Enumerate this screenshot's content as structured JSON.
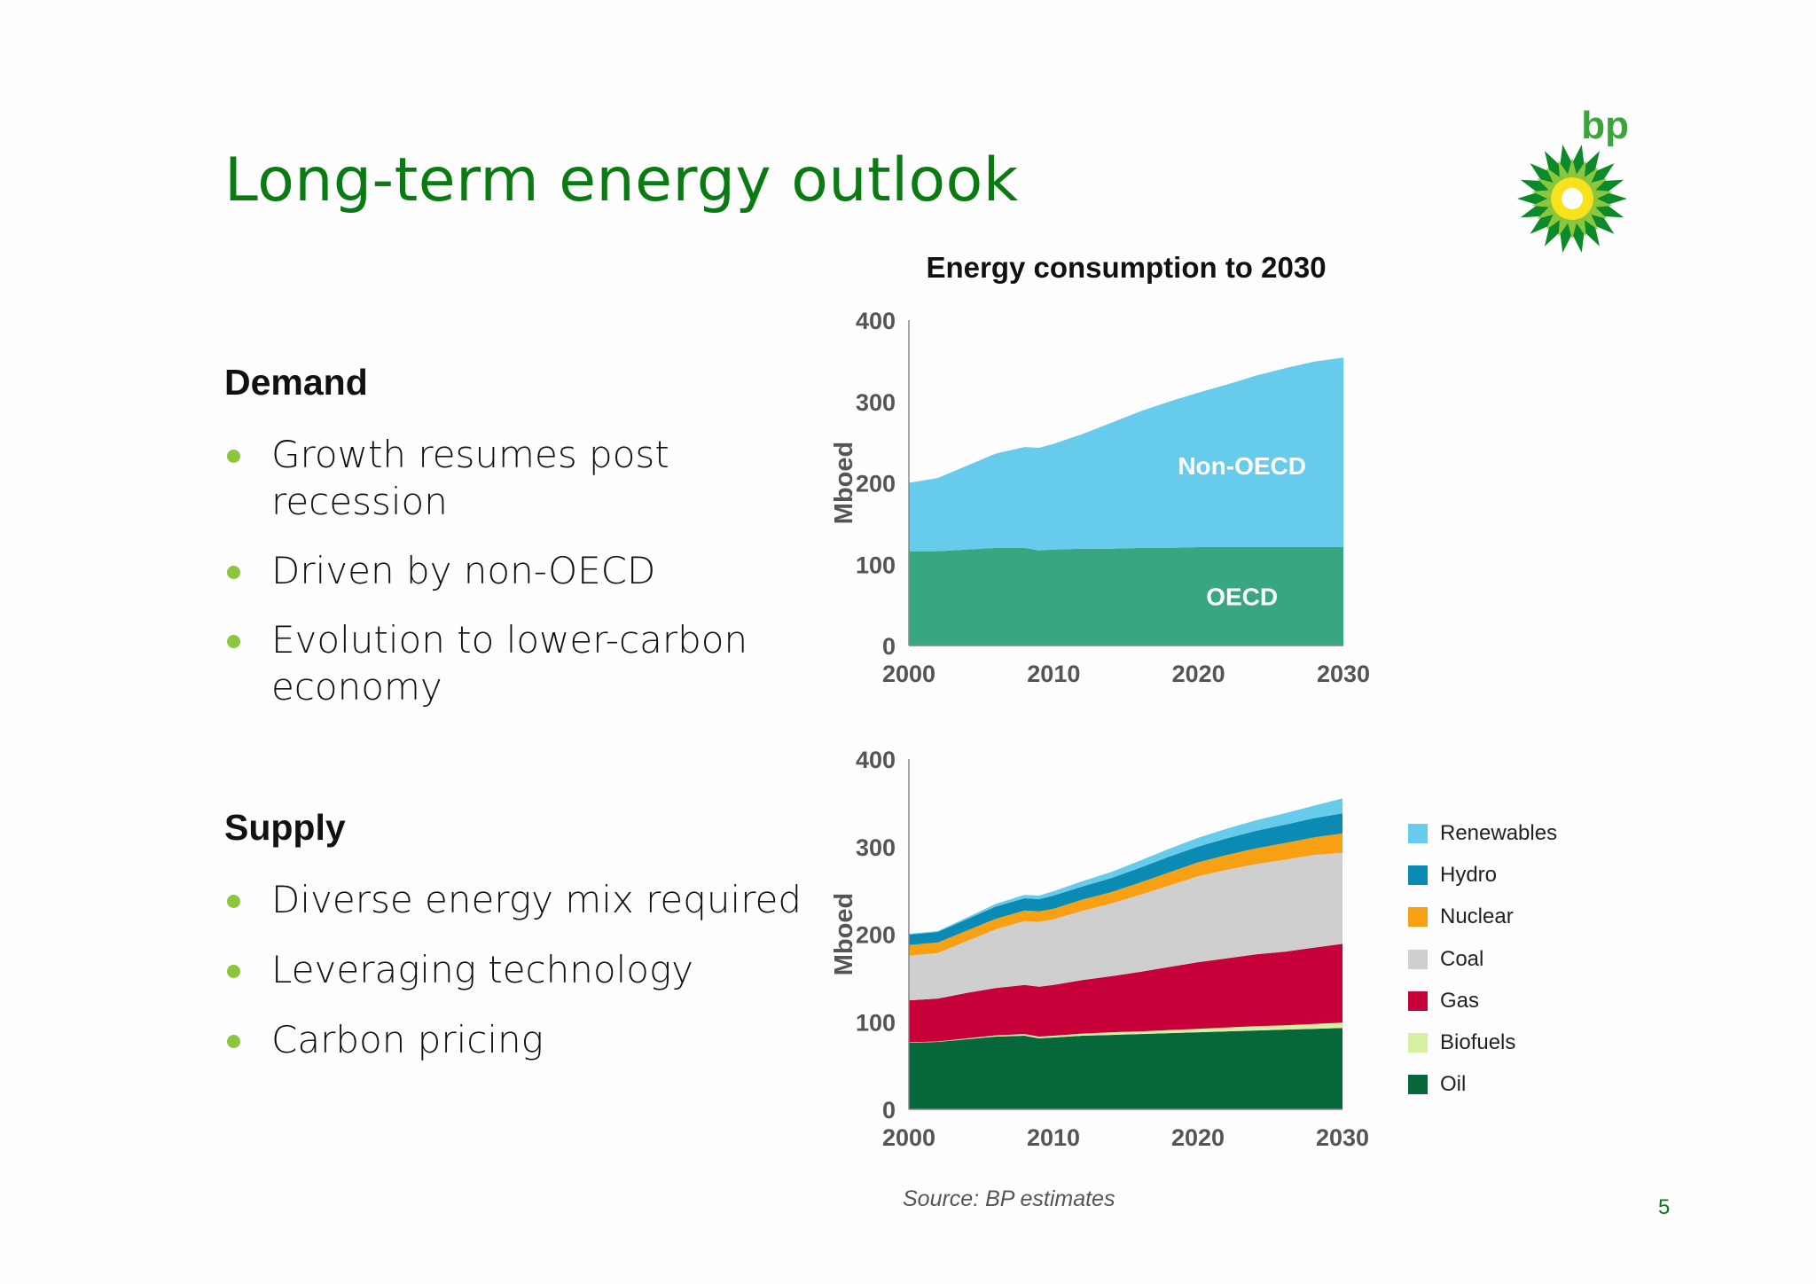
{
  "slide": {
    "title": "Long-term energy outlook",
    "page_number": "5",
    "source": "Source:  BP estimates",
    "logo_text": "bp"
  },
  "demand": {
    "heading": "Demand",
    "bullets": [
      "Growth resumes post recession",
      "Driven by non-OECD",
      "Evolution to lower-carbon economy"
    ]
  },
  "supply": {
    "heading": "Supply",
    "bullets": [
      "Diverse energy mix required",
      "Leveraging technology",
      "Carbon pricing"
    ]
  },
  "colors": {
    "title_green": "#0a7a12",
    "bullet_dot": "#8cc63f",
    "oecd": "#38a77f",
    "non_oecd": "#67cbeb",
    "oil": "#06683a",
    "biofuels": "#d8f0a4",
    "gas": "#c8003a",
    "coal": "#cfcfd0",
    "nuclear": "#f7a014",
    "hydro": "#0b8bb3",
    "renewables": "#67cbeb"
  },
  "chart_data": [
    {
      "type": "area",
      "title": "Energy consumption to 2030",
      "ylabel": "Mboed",
      "xlabel": "",
      "xlim": [
        2000,
        2030
      ],
      "ylim": [
        0,
        400
      ],
      "x_ticks": [
        2000,
        2010,
        2020,
        2030
      ],
      "y_ticks": [
        0,
        100,
        200,
        300,
        400
      ],
      "stacked": true,
      "x": [
        2000,
        2002,
        2004,
        2006,
        2008,
        2009,
        2010,
        2012,
        2014,
        2016,
        2018,
        2020,
        2022,
        2024,
        2026,
        2028,
        2030
      ],
      "series": [
        {
          "name": "OECD",
          "values": [
            116,
            116,
            118,
            120,
            120,
            117,
            118,
            119,
            119,
            120,
            120,
            121,
            121,
            121,
            121,
            121,
            121
          ]
        },
        {
          "name": "Non-OECD",
          "values": [
            84,
            90,
            103,
            116,
            124,
            126,
            130,
            141,
            155,
            168,
            180,
            190,
            200,
            211,
            220,
            228,
            233
          ]
        }
      ]
    },
    {
      "type": "area",
      "title": "",
      "ylabel": "Mboed",
      "xlabel": "",
      "xlim": [
        2000,
        2030
      ],
      "ylim": [
        0,
        400
      ],
      "x_ticks": [
        2000,
        2010,
        2020,
        2030
      ],
      "y_ticks": [
        0,
        100,
        200,
        300,
        400
      ],
      "stacked": true,
      "legend_position": "right",
      "x": [
        2000,
        2002,
        2004,
        2006,
        2008,
        2009,
        2010,
        2012,
        2014,
        2016,
        2018,
        2020,
        2022,
        2024,
        2026,
        2028,
        2030
      ],
      "series": [
        {
          "name": "Oil",
          "values": [
            76,
            77,
            80,
            83,
            84,
            81,
            82,
            84,
            85,
            86,
            87,
            88,
            89,
            90,
            91,
            92,
            93
          ]
        },
        {
          "name": "Biofuels",
          "values": [
            0.5,
            0.5,
            1,
            1.5,
            2,
            2,
            2,
            2.5,
            3,
            3,
            3.5,
            4,
            4.5,
            5,
            5,
            5.5,
            6
          ]
        },
        {
          "name": "Gas",
          "values": [
            48,
            49,
            52,
            54,
            56,
            57,
            58,
            61,
            64,
            68,
            72,
            76,
            79,
            82,
            84,
            87,
            90
          ]
        },
        {
          "name": "Coal",
          "values": [
            51,
            52,
            59,
            67,
            73,
            74,
            75,
            79,
            83,
            88,
            93,
            98,
            101,
            103,
            105,
            106,
            104
          ]
        },
        {
          "name": "Nuclear",
          "values": [
            12,
            12,
            12,
            12,
            12,
            12,
            12,
            13,
            13,
            14,
            15,
            16,
            17,
            18,
            19,
            20,
            22
          ]
        },
        {
          "name": "Hydro",
          "values": [
            12,
            12,
            13,
            14,
            14,
            14,
            15,
            15,
            16,
            17,
            18,
            18,
            19,
            20,
            21,
            22,
            23
          ]
        },
        {
          "name": "Renewables",
          "values": [
            1,
            1,
            2,
            3,
            4,
            4,
            5,
            6,
            7,
            8,
            9,
            10,
            11,
            12,
            13,
            14,
            17
          ]
        }
      ]
    }
  ]
}
